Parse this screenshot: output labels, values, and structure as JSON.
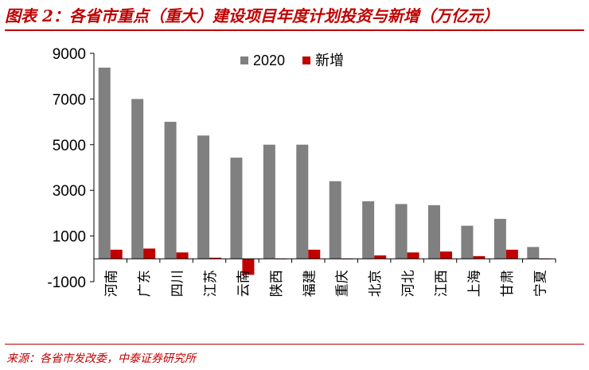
{
  "header": {
    "title": "图表 2：各省市重点（重大）建设项目年度计划投资与新增（万亿元）"
  },
  "footer": {
    "source": "来源：各省市发改委，中泰证券研究所"
  },
  "colors": {
    "series_2020": "#808080",
    "series_new": "#c00000",
    "title": "#c00000"
  },
  "chart_data": {
    "type": "bar",
    "title": "图表 2：各省市重点（重大）建设项目年度计划投资与新增（万亿元）",
    "categories": [
      "河南",
      "广东",
      "四川",
      "江苏",
      "云南",
      "陕西",
      "福建",
      "重庆",
      "北京",
      "河北",
      "江西",
      "上海",
      "甘肃",
      "宁夏"
    ],
    "series": [
      {
        "name": "2020",
        "color": "#808080",
        "values": [
          8372,
          7000,
          6000,
          5400,
          4430,
          5000,
          5000,
          3400,
          2520,
          2400,
          2350,
          1450,
          1750,
          520
        ]
      },
      {
        "name": "新增",
        "color": "#c00000",
        "values": [
          400,
          450,
          280,
          50,
          -700,
          0,
          400,
          0,
          150,
          280,
          320,
          120,
          400,
          0
        ]
      }
    ],
    "ylim": [
      -1000,
      9000
    ],
    "yticks": [
      "9000",
      "7000",
      "5000",
      "3000",
      "1000",
      "-1000"
    ],
    "legend": "top-right",
    "grid": false
  }
}
